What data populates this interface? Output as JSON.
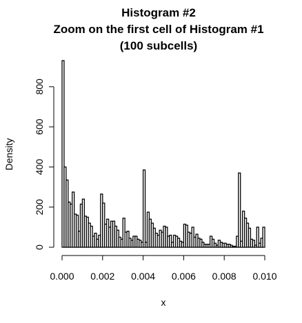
{
  "chart_data": {
    "type": "bar",
    "title_lines": [
      "Histogram #2",
      "Zoom on the first cell of Histogram #1",
      "(100 subcells)"
    ],
    "xlabel": "x",
    "ylabel": "Density",
    "xlim": [
      0.0,
      0.01
    ],
    "ylim": [
      0,
      930
    ],
    "xticks": [
      "0.000",
      "0.002",
      "0.004",
      "0.006",
      "0.008",
      "0.010"
    ],
    "xtick_values": [
      0.0,
      0.002,
      0.004,
      0.006,
      0.008,
      0.01
    ],
    "yticks": [
      "0",
      "200",
      "400",
      "600",
      "800"
    ],
    "ytick_values": [
      0,
      200,
      400,
      600,
      800
    ],
    "bin_width": 0.0001,
    "values": [
      930,
      400,
      335,
      225,
      215,
      275,
      165,
      160,
      80,
      215,
      240,
      155,
      150,
      120,
      105,
      55,
      70,
      40,
      60,
      265,
      220,
      115,
      140,
      100,
      130,
      130,
      105,
      85,
      50,
      40,
      145,
      75,
      80,
      45,
      35,
      55,
      55,
      40,
      35,
      25,
      385,
      25,
      175,
      140,
      120,
      95,
      70,
      60,
      85,
      75,
      105,
      100,
      55,
      60,
      25,
      60,
      55,
      45,
      30,
      25,
      115,
      110,
      75,
      70,
      100,
      50,
      65,
      45,
      40,
      25,
      15,
      15,
      15,
      55,
      40,
      20,
      10,
      35,
      25,
      20,
      20,
      15,
      15,
      10,
      5,
      5,
      55,
      370,
      30,
      180,
      145,
      120,
      95,
      40,
      35,
      10,
      100,
      20,
      45,
      100
    ]
  }
}
